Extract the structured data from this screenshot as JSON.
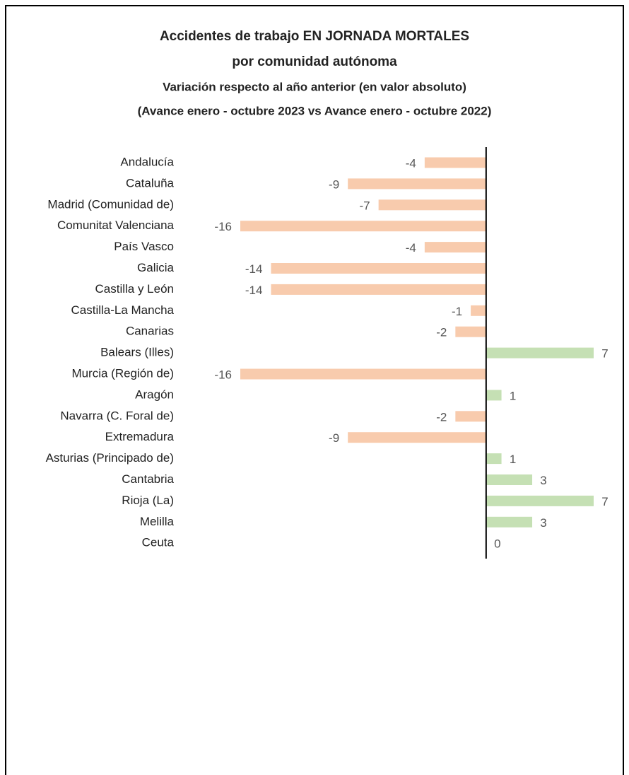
{
  "chart_data": {
    "type": "bar",
    "orientation": "horizontal",
    "title": [
      "Accidentes de trabajo EN JORNADA MORTALES",
      "por comunidad autónoma"
    ],
    "subtitle": [
      "Variación respecto al año anterior (en valor absoluto)",
      "(Avance enero - octubre 2023 vs Avance enero - octubre 2022)"
    ],
    "categories": [
      "Andalucía",
      "Cataluña",
      "Madrid (Comunidad de)",
      "Comunitat Valenciana",
      "País Vasco",
      "Galicia",
      "Castilla y León",
      "Castilla-La Mancha",
      "Canarias",
      "Balears (Illes)",
      "Murcia (Región de)",
      "Aragón",
      "Navarra (C. Foral de)",
      "Extremadura",
      "Asturias (Principado de)",
      "Cantabria",
      "Rioja (La)",
      "Melilla",
      "Ceuta"
    ],
    "values": [
      -4,
      -9,
      -7,
      -16,
      -4,
      -14,
      -14,
      -1,
      -2,
      7,
      -16,
      1,
      -2,
      -9,
      1,
      3,
      7,
      3,
      0
    ],
    "negative_color": "#f8cbad",
    "positive_color": "#c5e0b4",
    "xlim": [
      -16,
      7
    ],
    "grid": false
  }
}
